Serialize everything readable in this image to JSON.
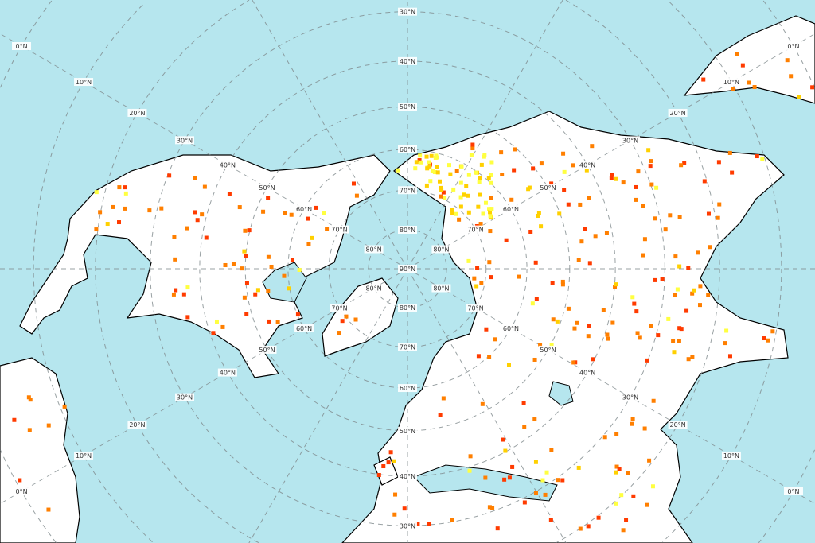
{
  "map": {
    "projection": "north-polar",
    "ocean_color": "#b6e6ee",
    "land_color": "#ffffff",
    "coast_color": "#000000",
    "graticule": {
      "latitudes": [
        90,
        80,
        70,
        60,
        50,
        40,
        30,
        20,
        10,
        0
      ],
      "labels": {
        "90": "90°N",
        "80": "80°N",
        "70": "70°N",
        "60": "60°N",
        "50": "50°N",
        "40": "40°N",
        "30": "30°N",
        "20": "20°N",
        "10": "10°N",
        "0": "0°N"
      }
    },
    "fire_colors": [
      "#ff3b00",
      "#ff7f00",
      "#ffd000",
      "#ffff40"
    ]
  }
}
